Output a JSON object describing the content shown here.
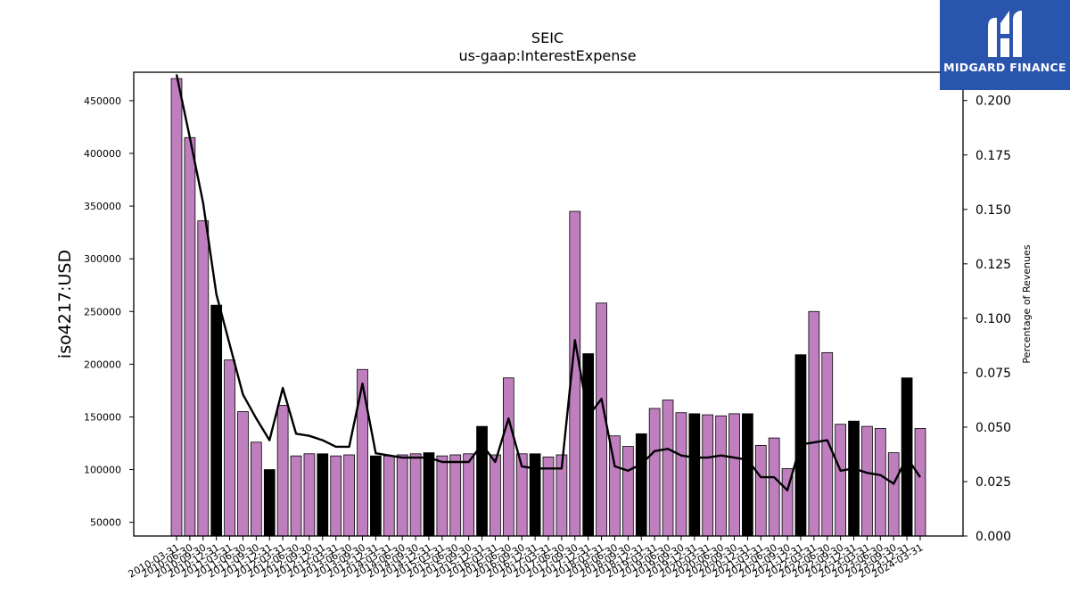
{
  "chart_data": {
    "type": "bar",
    "title": "SEIC",
    "subtitle": "us-gaap:InterestExpense",
    "ylabel": "iso4217:USD",
    "y2label": "Percentage of Revenues",
    "ylim": [
      37000,
      477000
    ],
    "y2lim": [
      0.0,
      0.213
    ],
    "yticks": [
      50000,
      100000,
      150000,
      200000,
      250000,
      300000,
      350000,
      400000,
      450000
    ],
    "y2ticks": [
      0.0,
      0.025,
      0.05,
      0.075,
      0.1,
      0.125,
      0.15,
      0.175,
      0.2
    ],
    "y2tick_labels": [
      "0.000",
      "0.025",
      "0.050",
      "0.075",
      "0.100",
      "0.125",
      "0.150",
      "0.175",
      "0.200"
    ],
    "categories": [
      "2010-03-31",
      "2010-06-30",
      "2010-09-30",
      "2010-12-31",
      "2011-03-31",
      "2011-06-30",
      "2011-09-30",
      "2011-12-31",
      "2012-03-31",
      "2012-06-30",
      "2012-09-30",
      "2012-12-31",
      "2013-03-31",
      "2013-06-30",
      "2013-09-30",
      "2013-12-31",
      "2014-03-31",
      "2014-06-30",
      "2014-09-30",
      "2014-12-31",
      "2015-03-31",
      "2015-06-30",
      "2015-09-30",
      "2015-12-31",
      "2016-03-31",
      "2016-06-30",
      "2016-09-30",
      "2016-12-31",
      "2017-03-31",
      "2017-06-30",
      "2017-09-30",
      "2017-12-31",
      "2018-03-31",
      "2018-06-30",
      "2018-09-30",
      "2018-12-31",
      "2019-03-31",
      "2019-06-30",
      "2019-09-30",
      "2019-12-31",
      "2020-03-31",
      "2020-06-30",
      "2020-09-30",
      "2020-12-31",
      "2021-03-31",
      "2021-06-30",
      "2021-09-30",
      "2021-12-31",
      "2022-03-31",
      "2022-06-30",
      "2022-09-30",
      "2022-12-31",
      "2023-03-31",
      "2023-06-30",
      "2023-09-30",
      "2023-12-31",
      "2024-03-31"
    ],
    "series": [
      {
        "type": "bar",
        "values": [
          471000,
          415000,
          336000,
          256000,
          204000,
          155000,
          126000,
          100000,
          161000,
          113000,
          115000,
          115000,
          113000,
          114000,
          195000,
          113000,
          113000,
          114000,
          115000,
          116000,
          113000,
          114000,
          115000,
          141000,
          114000,
          187000,
          115000,
          115000,
          112000,
          114000,
          345000,
          210000,
          258000,
          132000,
          122000,
          134000,
          158000,
          166000,
          154000,
          153000,
          152000,
          151000,
          153000,
          153000,
          123000,
          130000,
          101000,
          209000,
          250000,
          211000,
          143000,
          146000,
          141000,
          139000,
          116000,
          187000,
          139000
        ],
        "highlight": [
          false,
          false,
          false,
          true,
          false,
          false,
          false,
          true,
          false,
          false,
          false,
          true,
          false,
          false,
          false,
          true,
          false,
          false,
          false,
          true,
          false,
          false,
          false,
          true,
          false,
          false,
          false,
          true,
          false,
          false,
          false,
          true,
          false,
          false,
          false,
          true,
          false,
          false,
          false,
          true,
          false,
          false,
          false,
          true,
          false,
          false,
          false,
          true,
          false,
          false,
          false,
          true,
          false,
          false,
          false,
          true,
          false
        ],
        "color": "#bf7fbf",
        "highlight_color": "#000000"
      },
      {
        "type": "line",
        "axis": "right",
        "values": [
          0.212,
          0.183,
          0.153,
          0.111,
          0.088,
          0.065,
          0.054,
          0.044,
          0.068,
          0.047,
          0.046,
          0.044,
          0.041,
          0.041,
          0.07,
          0.038,
          0.037,
          0.036,
          0.036,
          0.036,
          0.034,
          0.034,
          0.034,
          0.042,
          0.034,
          0.054,
          0.032,
          0.031,
          0.031,
          0.031,
          0.09,
          0.055,
          0.063,
          0.032,
          0.03,
          0.033,
          0.039,
          0.04,
          0.037,
          0.036,
          0.036,
          0.037,
          0.036,
          0.035,
          0.027,
          0.027,
          0.021,
          0.042,
          0.043,
          0.044,
          0.03,
          0.031,
          0.029,
          0.028,
          0.024,
          0.036,
          0.027
        ],
        "color": "#000000"
      }
    ]
  },
  "logo": {
    "text": "MIDGARD FINANCE",
    "color": "#2a55ad"
  }
}
